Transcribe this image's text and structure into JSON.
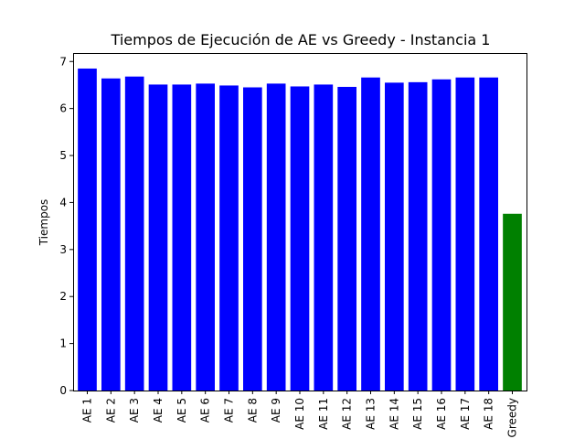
{
  "chart_data": {
    "type": "bar",
    "title": "Tiempos de Ejecución de AE vs Greedy - Instancia 1",
    "xlabel": "",
    "ylabel": "Tiempos",
    "categories": [
      "AE 1",
      "AE 2",
      "AE 3",
      "AE 4",
      "AE 5",
      "AE 6",
      "AE 7",
      "AE 8",
      "AE 9",
      "AE 10",
      "AE 11",
      "AE 12",
      "AE 13",
      "AE 14",
      "AE 15",
      "AE 16",
      "AE 17",
      "AE 18",
      "Greedy"
    ],
    "values": [
      6.85,
      6.64,
      6.68,
      6.51,
      6.51,
      6.53,
      6.49,
      6.45,
      6.53,
      6.47,
      6.51,
      6.46,
      6.66,
      6.55,
      6.56,
      6.62,
      6.66,
      6.66,
      3.76
    ],
    "bar_colors": [
      "#0000ff",
      "#0000ff",
      "#0000ff",
      "#0000ff",
      "#0000ff",
      "#0000ff",
      "#0000ff",
      "#0000ff",
      "#0000ff",
      "#0000ff",
      "#0000ff",
      "#0000ff",
      "#0000ff",
      "#0000ff",
      "#0000ff",
      "#0000ff",
      "#0000ff",
      "#0000ff",
      "#008000"
    ],
    "ylim": [
      0,
      7.18
    ],
    "yticks": [
      0,
      1,
      2,
      3,
      4,
      5,
      6,
      7
    ],
    "grid": false
  }
}
